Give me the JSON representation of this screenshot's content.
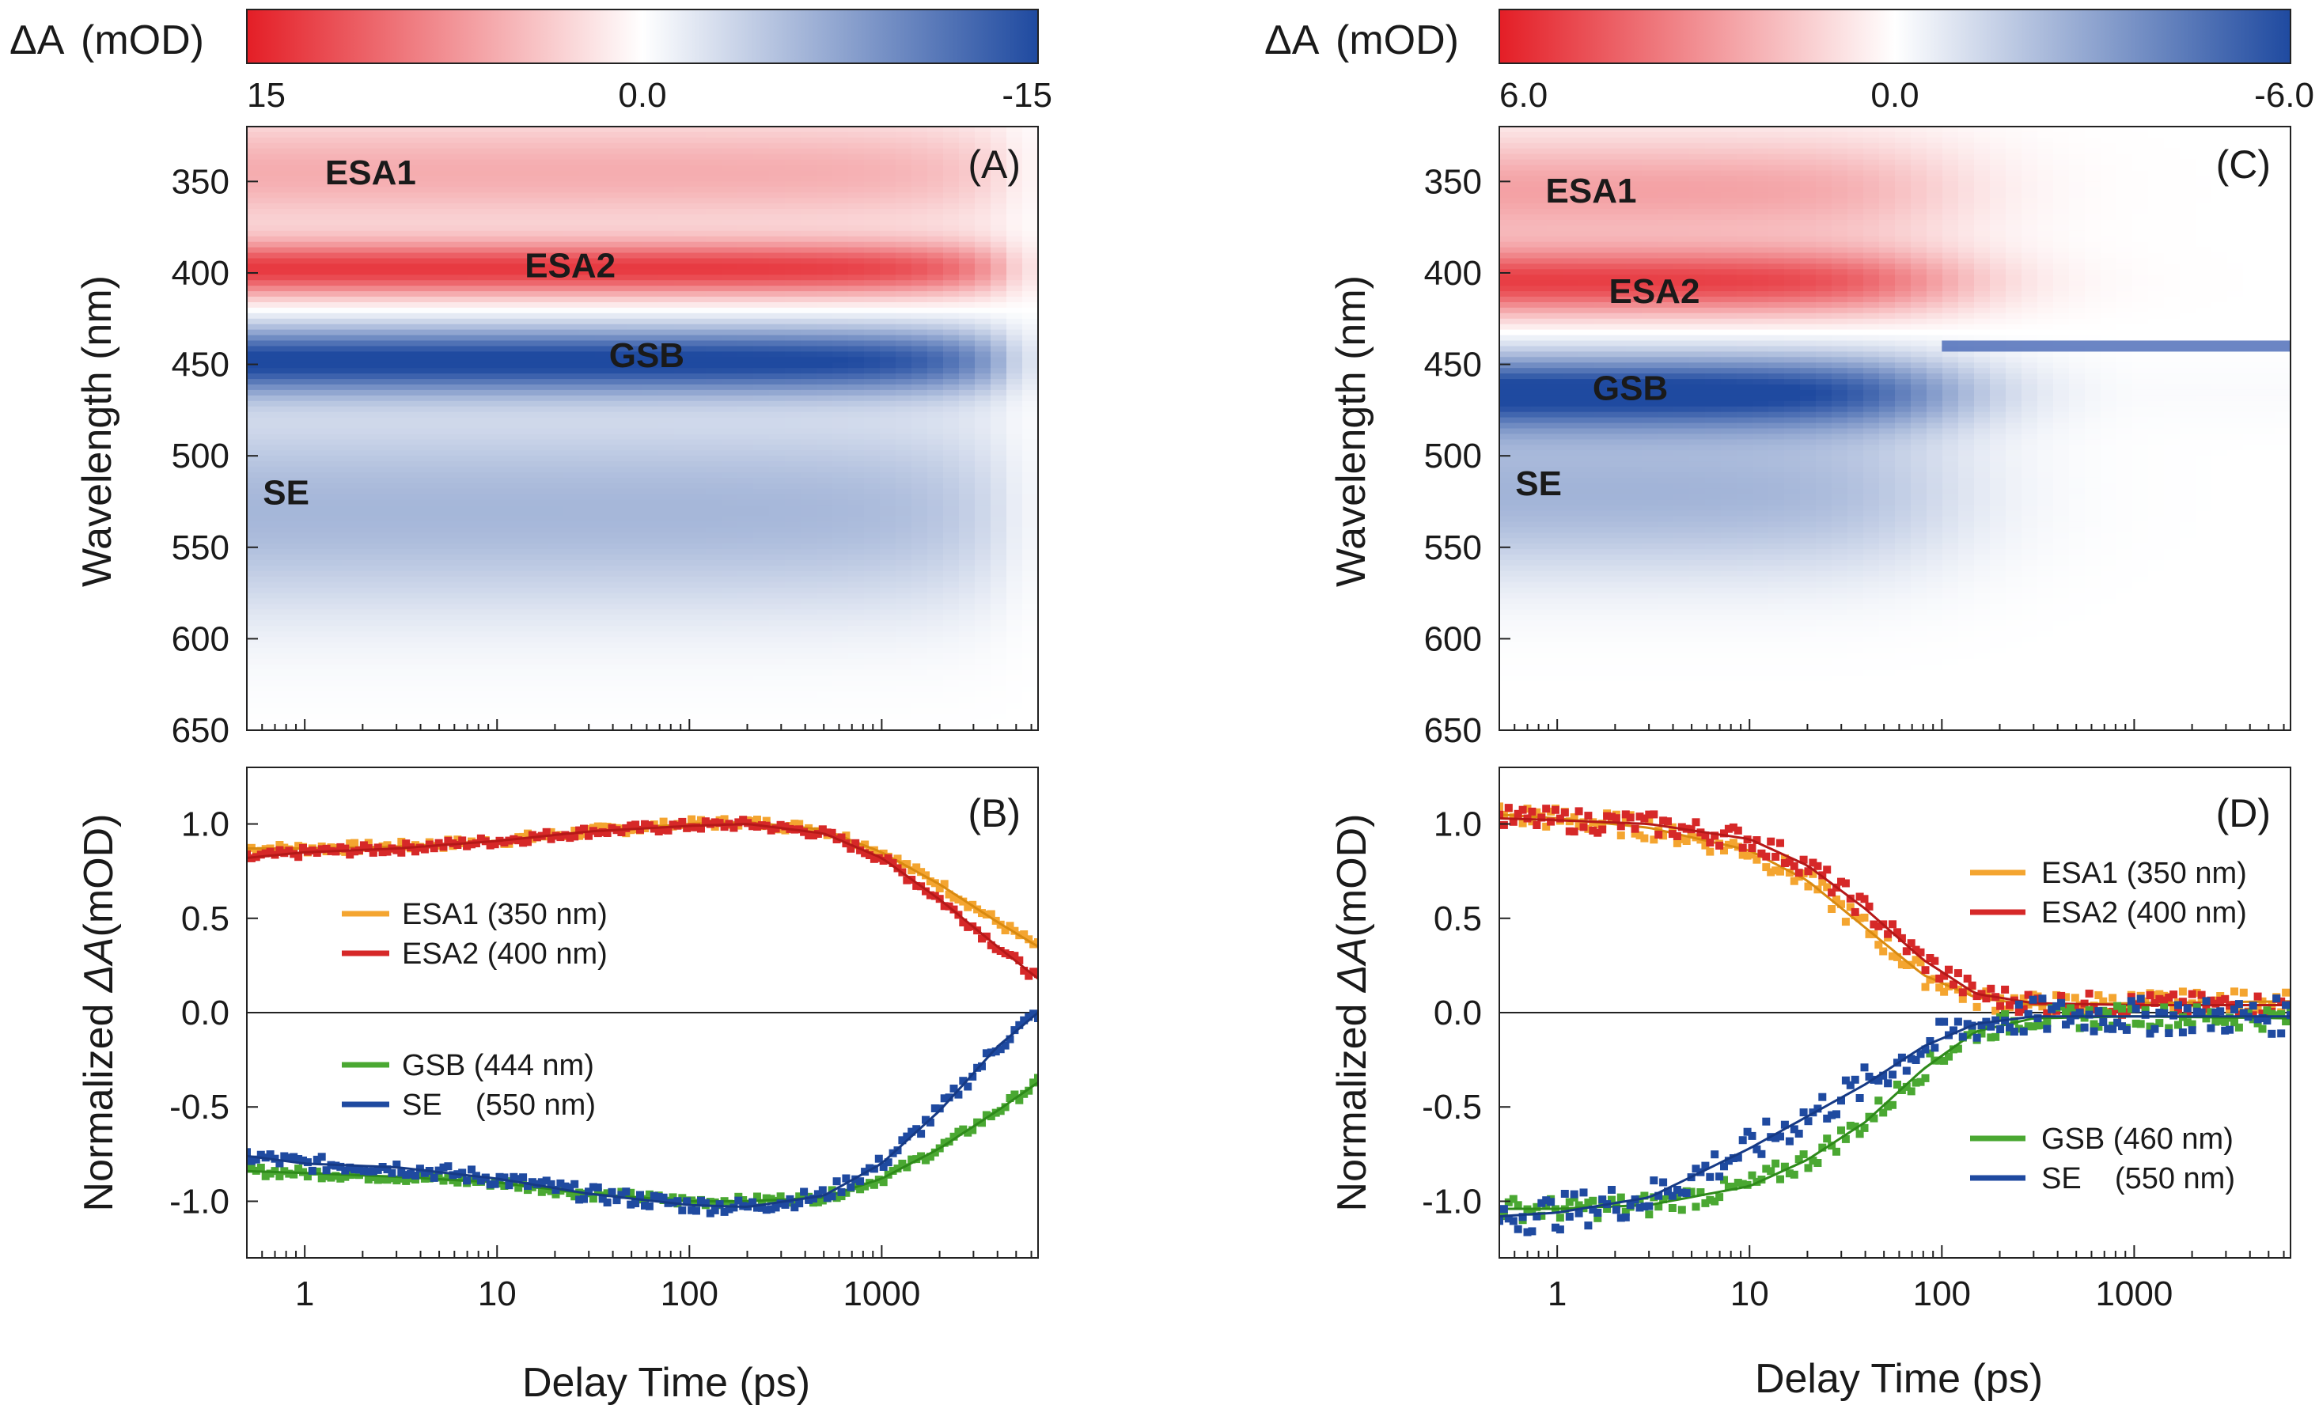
{
  "colors": {
    "red": "#e41e26",
    "blue": "#1f4aa0",
    "orange": "#f4a530",
    "esa2": "#d62828",
    "green": "#4aa832",
    "navy": "#1f4aa0",
    "white": "#ffffff"
  },
  "shared": {
    "delta_a": "ΔA",
    "mod_unit": "(mOD)",
    "xlabel": "Delay Time (ps)",
    "ylabel_map": "Wavelength (nm)",
    "ylabel_kin_prefix": "Normalized ",
    "ylabel_kin_unit": "(mOD)"
  },
  "chart_data": [
    {
      "id": "A",
      "type": "heatmap",
      "tag": "(A)",
      "x_scale": "log",
      "xlim": [
        0.5,
        6500
      ],
      "ylim": [
        320,
        650
      ],
      "yticks": [
        "350",
        "400",
        "450",
        "500",
        "550",
        "600",
        "650"
      ],
      "ylabel": "Wavelength (nm)",
      "colorbar": {
        "min": -15,
        "max": 15,
        "ticks": [
          "15",
          "0.0",
          "-15"
        ],
        "unit": "mOD"
      },
      "bands": [
        {
          "name": "ESA1",
          "center_nm": 345,
          "amp_mOD": 5.5,
          "sign": "positive"
        },
        {
          "name": "ESA2",
          "center_nm": 398,
          "amp_mOD": 13,
          "sign": "positive"
        },
        {
          "name": "GSB",
          "center_nm": 448,
          "amp_mOD": -15,
          "sign": "negative"
        },
        {
          "name": "SE",
          "center_nm": 530,
          "amp_mOD": -6,
          "sign": "negative"
        }
      ],
      "labels": [
        {
          "text": "ESA1",
          "time_ps": 2.2,
          "wavelength_nm": 345
        },
        {
          "text": "ESA2",
          "time_ps": 24,
          "wavelength_nm": 396
        },
        {
          "text": "GSB",
          "time_ps": 60,
          "wavelength_nm": 445
        },
        {
          "text": "SE",
          "time_ps": 0.8,
          "wavelength_nm": 520
        }
      ]
    },
    {
      "id": "B",
      "type": "scatter",
      "tag": "(B)",
      "x_scale": "log",
      "xlim": [
        0.5,
        6500
      ],
      "ylim": [
        -1.3,
        1.3
      ],
      "xticks": [
        "1",
        "10",
        "100",
        "1000"
      ],
      "yticks": [
        "1.0",
        "0.5",
        "0.0",
        "-0.5",
        "-1.0"
      ],
      "xlabel": "Delay Time (ps)",
      "series": [
        {
          "name": "ESA1 (350 nm)",
          "color": "#f4a530",
          "x": [
            0.5,
            1,
            3,
            10,
            30,
            100,
            200,
            500,
            1000,
            2000,
            4000,
            6500
          ],
          "y": [
            0.87,
            0.87,
            0.88,
            0.91,
            0.96,
            1.0,
            1.01,
            0.97,
            0.85,
            0.68,
            0.48,
            0.35
          ]
        },
        {
          "name": "ESA2 (400 nm)",
          "color": "#d62828",
          "x": [
            0.5,
            1,
            3,
            10,
            30,
            100,
            200,
            500,
            1000,
            2000,
            4000,
            6500
          ],
          "y": [
            0.82,
            0.85,
            0.87,
            0.91,
            0.96,
            0.99,
            1.0,
            0.95,
            0.82,
            0.6,
            0.35,
            0.18
          ]
        },
        {
          "name": "GSB (444 nm)",
          "color": "#4aa832",
          "x": [
            0.5,
            1,
            3,
            10,
            30,
            100,
            200,
            500,
            1000,
            2000,
            4000,
            6500
          ],
          "y": [
            -0.84,
            -0.85,
            -0.87,
            -0.9,
            -0.96,
            -1.0,
            -1.0,
            -0.98,
            -0.88,
            -0.72,
            -0.52,
            -0.37
          ]
        },
        {
          "name": "SE    (550 nm)",
          "color": "#1f4aa0",
          "x": [
            0.5,
            1,
            3,
            10,
            30,
            100,
            200,
            500,
            1000,
            2000,
            4000,
            6500
          ],
          "y": [
            -0.76,
            -0.8,
            -0.82,
            -0.88,
            -0.96,
            -1.02,
            -1.03,
            -0.97,
            -0.8,
            -0.52,
            -0.18,
            0.0
          ]
        }
      ]
    },
    {
      "id": "C",
      "type": "heatmap",
      "tag": "(C)",
      "x_scale": "log",
      "xlim": [
        0.5,
        6500
      ],
      "ylim": [
        320,
        650
      ],
      "yticks": [
        "350",
        "400",
        "450",
        "500",
        "550",
        "600",
        "650"
      ],
      "ylabel": "Wavelength (nm)",
      "colorbar": {
        "min": -6,
        "max": 6,
        "ticks": [
          "6.0",
          "0.0",
          "-6.0"
        ],
        "unit": "mOD"
      },
      "bands": [
        {
          "name": "ESA1",
          "center_nm": 355,
          "amp_mOD": 2.5,
          "sign": "positive"
        },
        {
          "name": "ESA2",
          "center_nm": 405,
          "amp_mOD": 5,
          "sign": "positive"
        },
        {
          "name": "GSB",
          "center_nm": 465,
          "amp_mOD": -6,
          "sign": "negative"
        },
        {
          "name": "SE",
          "center_nm": 520,
          "amp_mOD": -2.5,
          "sign": "negative"
        }
      ],
      "labels": [
        {
          "text": "ESA1",
          "time_ps": 1.5,
          "wavelength_nm": 355
        },
        {
          "text": "ESA2",
          "time_ps": 3.2,
          "wavelength_nm": 410
        },
        {
          "text": "GSB",
          "time_ps": 2.4,
          "wavelength_nm": 463
        },
        {
          "text": "SE",
          "time_ps": 0.8,
          "wavelength_nm": 515
        }
      ]
    },
    {
      "id": "D",
      "type": "scatter",
      "tag": "(D)",
      "x_scale": "log",
      "xlim": [
        0.5,
        6500
      ],
      "ylim": [
        -1.3,
        1.3
      ],
      "xticks": [
        "1",
        "10",
        "100",
        "1000"
      ],
      "yticks": [
        "1.0",
        "0.5",
        "0.0",
        "-0.5",
        "-1.0"
      ],
      "xlabel": "Delay Time (ps)",
      "series": [
        {
          "name": "ESA1 (350 nm)",
          "color": "#f4a530",
          "x": [
            0.5,
            1,
            3,
            10,
            20,
            40,
            80,
            150,
            300,
            1000,
            6500
          ],
          "y": [
            1.05,
            1.03,
            0.98,
            0.86,
            0.7,
            0.45,
            0.2,
            0.08,
            0.04,
            0.05,
            0.06
          ]
        },
        {
          "name": "ESA2 (400 nm)",
          "color": "#d62828",
          "x": [
            0.5,
            1,
            3,
            10,
            20,
            40,
            80,
            150,
            300,
            1000,
            6500
          ],
          "y": [
            1.03,
            1.02,
            1.0,
            0.92,
            0.78,
            0.55,
            0.28,
            0.1,
            0.05,
            0.04,
            0.04
          ]
        },
        {
          "name": "GSB (460 nm)",
          "color": "#4aa832",
          "x": [
            0.5,
            1,
            3,
            10,
            20,
            40,
            80,
            150,
            300,
            1000,
            6500
          ],
          "y": [
            -1.04,
            -1.04,
            -1.02,
            -0.92,
            -0.78,
            -0.58,
            -0.3,
            -0.1,
            -0.03,
            -0.02,
            -0.03
          ]
        },
        {
          "name": "SE    (550 nm)",
          "color": "#1f4aa0",
          "x": [
            0.5,
            1,
            3,
            10,
            20,
            40,
            80,
            150,
            300,
            1000,
            6500
          ],
          "y": [
            -1.08,
            -1.06,
            -0.98,
            -0.72,
            -0.55,
            -0.38,
            -0.18,
            -0.06,
            -0.02,
            -0.02,
            -0.02
          ]
        }
      ]
    }
  ]
}
